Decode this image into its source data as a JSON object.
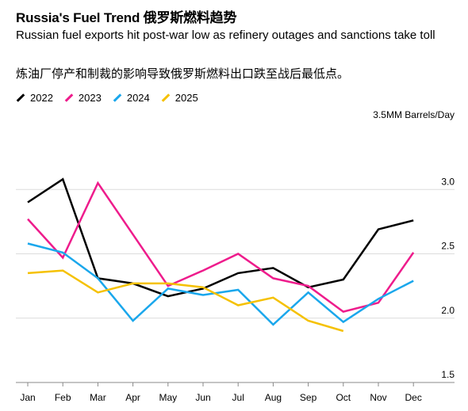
{
  "header": {
    "title": "Russia's Fuel Trend  俄罗斯燃料趋势",
    "subtitle": "Russian fuel exports hit post-war low as refinery outages and sanctions take toll",
    "subtitle_zh": "炼油厂停产和制裁的影响导致俄罗斯燃料出口跌至战后最低点。"
  },
  "chart_data": {
    "type": "line",
    "categories": [
      "Jan",
      "Feb",
      "Mar",
      "Apr",
      "May",
      "Jun",
      "Jul",
      "Aug",
      "Sep",
      "Oct",
      "Nov",
      "Dec"
    ],
    "unit_label": "3.5MM Barrels/Day",
    "ylim": [
      1.5,
      3.5
    ],
    "yticks": [
      1.5,
      2.0,
      2.5,
      3.0
    ],
    "ytick_labels": [
      "1.5",
      "2.0",
      "2.5",
      "3.0"
    ],
    "grid": true,
    "legend_position": "top-left",
    "series": [
      {
        "name": "2022",
        "color": "#000000",
        "values": [
          2.9,
          3.08,
          2.31,
          2.27,
          2.17,
          2.23,
          2.35,
          2.39,
          2.24,
          2.3,
          2.69,
          2.76
        ]
      },
      {
        "name": "2023",
        "color": "#ee1c8c",
        "values": [
          2.77,
          2.47,
          3.05,
          2.65,
          2.25,
          2.37,
          2.5,
          2.31,
          2.25,
          2.05,
          2.12,
          2.51
        ]
      },
      {
        "name": "2024",
        "color": "#1aa7ec",
        "values": [
          2.58,
          2.51,
          2.31,
          1.98,
          2.23,
          2.18,
          2.22,
          1.95,
          2.2,
          1.97,
          2.15,
          2.29
        ]
      },
      {
        "name": "2025",
        "color": "#f5c100",
        "values": [
          2.35,
          2.37,
          2.2,
          2.27,
          2.27,
          2.24,
          2.1,
          2.16,
          1.98,
          1.9,
          null,
          null
        ]
      }
    ]
  }
}
